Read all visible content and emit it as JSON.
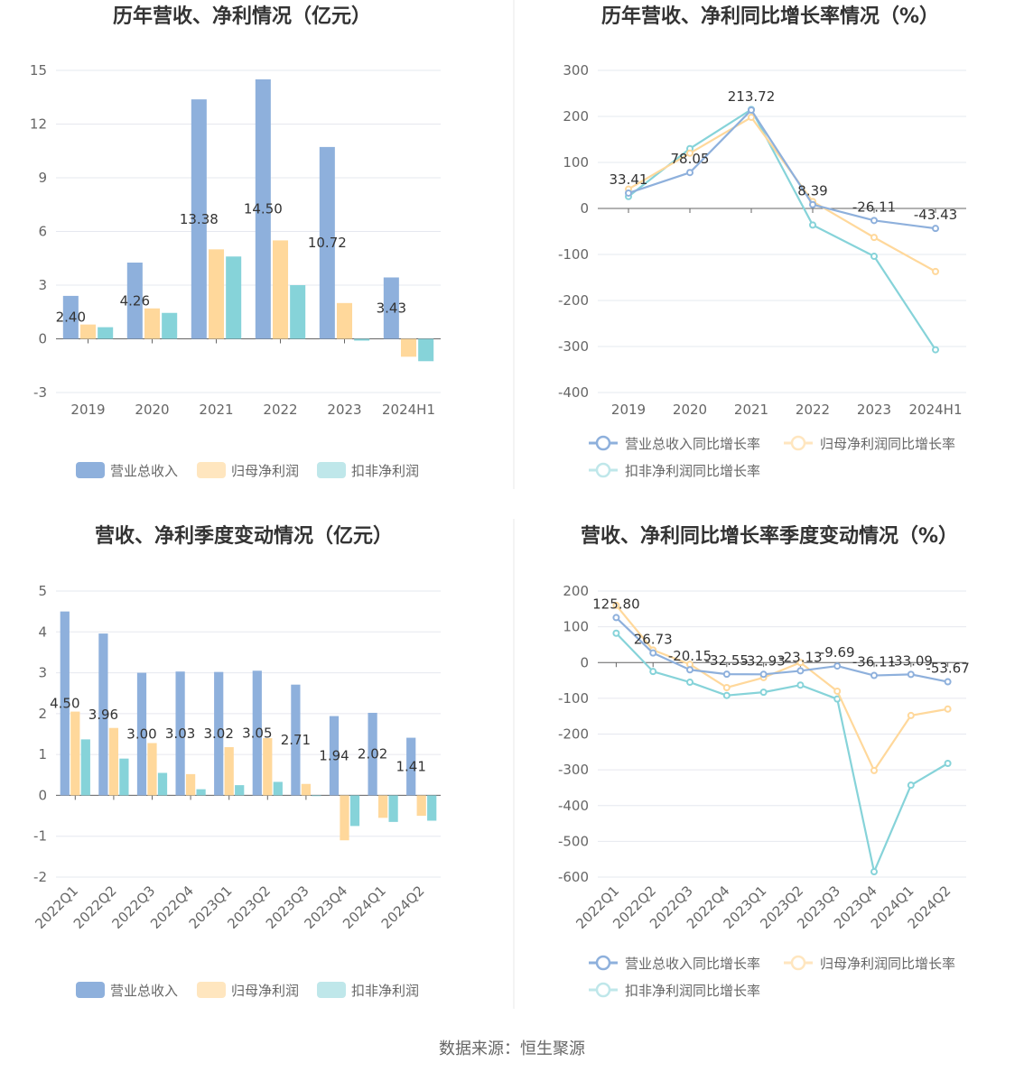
{
  "colors": {
    "revenue": "#8eb0dc",
    "net_profit": "#ffd89b",
    "deducted_profit": "#86d3d9",
    "revenue_legend": "#8eb0dc",
    "net_profit_legend": "#ffe6bf",
    "deducted_profit_legend": "#bfe7ea",
    "grid": "#e6e8ef",
    "axis": "#666666",
    "text": "#333333",
    "divider": "#e8e8e8"
  },
  "source_text": "数据来源：恒生聚源",
  "chart_data": [
    {
      "id": "annual-amounts",
      "type": "bar",
      "title": "历年营收、净利情况（亿元）",
      "categories": [
        "2019",
        "2020",
        "2021",
        "2022",
        "2023",
        "2024H1"
      ],
      "ylim": [
        -3,
        15
      ],
      "yticks": [
        -3,
        0,
        3,
        6,
        9,
        12,
        15
      ],
      "grid": true,
      "legend_position": "bottom",
      "series": [
        {
          "name": "营业总收入",
          "color_key": "revenue",
          "values": [
            2.4,
            4.26,
            13.38,
            14.5,
            10.72,
            3.43
          ],
          "labels": [
            "2.40",
            "4.26",
            "13.38",
            "14.50",
            "10.72",
            "3.43"
          ]
        },
        {
          "name": "归母净利润",
          "color_key": "net_profit",
          "values": [
            0.8,
            1.7,
            5.0,
            5.5,
            2.0,
            -1.0
          ]
        },
        {
          "name": "扣非净利润",
          "color_key": "deducted_profit",
          "values": [
            0.65,
            1.45,
            4.6,
            3.0,
            -0.1,
            -1.25
          ]
        }
      ]
    },
    {
      "id": "annual-growth",
      "type": "line",
      "title": "历年营收、净利同比增长率情况（%）",
      "categories": [
        "2019",
        "2020",
        "2021",
        "2022",
        "2023",
        "2024H1"
      ],
      "ylim": [
        -400,
        300
      ],
      "yticks": [
        -400,
        -300,
        -200,
        -100,
        0,
        100,
        200,
        300
      ],
      "grid": true,
      "legend_position": "bottom",
      "series": [
        {
          "name": "营业总收入同比增长率",
          "color_key": "revenue",
          "values": [
            33.41,
            78.05,
            213.72,
            8.39,
            -26.11,
            -43.43
          ],
          "labels": [
            "33.41",
            "78.05",
            "213.72",
            "8.39",
            "-26.11",
            "-43.43"
          ]
        },
        {
          "name": "归母净利润同比增长率",
          "color_key": "net_profit",
          "values": [
            42,
            120,
            198,
            15,
            -63,
            -137
          ]
        },
        {
          "name": "扣非净利润同比增长率",
          "color_key": "deducted_profit",
          "values": [
            26,
            130,
            215,
            -36,
            -104,
            -307
          ]
        }
      ]
    },
    {
      "id": "quarterly-amounts",
      "type": "bar",
      "title": "营收、净利季度变动情况（亿元）",
      "categories": [
        "2022Q1",
        "2022Q2",
        "2022Q3",
        "2022Q4",
        "2023Q1",
        "2023Q2",
        "2023Q3",
        "2023Q4",
        "2024Q1",
        "2024Q2"
      ],
      "ylim": [
        -2,
        5
      ],
      "yticks": [
        -2,
        -1,
        0,
        1,
        2,
        3,
        4,
        5
      ],
      "grid": true,
      "legend_position": "bottom",
      "series": [
        {
          "name": "营业总收入",
          "color_key": "revenue",
          "values": [
            4.5,
            3.96,
            3.0,
            3.03,
            3.02,
            3.05,
            2.71,
            1.94,
            2.02,
            1.41
          ],
          "labels": [
            "4.50",
            "3.96",
            "3.00",
            "3.03",
            "3.02",
            "3.05",
            "2.71",
            "1.94",
            "2.02",
            "1.41"
          ]
        },
        {
          "name": "归母净利润",
          "color_key": "net_profit",
          "values": [
            2.05,
            1.65,
            1.28,
            0.52,
            1.18,
            1.4,
            0.28,
            -1.1,
            -0.55,
            -0.5
          ]
        },
        {
          "name": "扣非净利润",
          "color_key": "deducted_profit",
          "values": [
            1.37,
            0.9,
            0.55,
            0.15,
            0.25,
            0.33,
            0.0,
            -0.75,
            -0.65,
            -0.62
          ]
        }
      ]
    },
    {
      "id": "quarterly-growth",
      "type": "line",
      "title": "营收、净利同比增长率季度变动情况（%）",
      "categories": [
        "2022Q1",
        "2022Q2",
        "2022Q3",
        "2022Q4",
        "2023Q1",
        "2023Q2",
        "2023Q3",
        "2023Q4",
        "2024Q1",
        "2024Q2"
      ],
      "ylim": [
        -600,
        200
      ],
      "yticks": [
        -600,
        -500,
        -400,
        -300,
        -200,
        -100,
        0,
        100,
        200
      ],
      "grid": true,
      "legend_position": "bottom",
      "series": [
        {
          "name": "营业总收入同比增长率",
          "color_key": "revenue",
          "values": [
            125.8,
            26.73,
            -20.15,
            -32.55,
            -32.93,
            -23.13,
            -9.69,
            -36.11,
            -33.09,
            -53.67
          ],
          "labels": [
            "125.80",
            "26.73",
            "-20.15",
            "-32.55",
            "-32.93",
            "-23.13",
            "-9.69",
            "-36.11",
            "-33.09",
            "-53.67"
          ]
        },
        {
          "name": "归母净利润同比增长率",
          "color_key": "net_profit",
          "values": [
            160,
            35,
            -5,
            -70,
            -42,
            0,
            -80,
            -302,
            -148,
            -130
          ]
        },
        {
          "name": "扣非净利润同比增长率",
          "color_key": "deducted_profit",
          "values": [
            82,
            -25,
            -55,
            -92,
            -83,
            -63,
            -102,
            -585,
            -343,
            -282
          ]
        }
      ]
    }
  ]
}
